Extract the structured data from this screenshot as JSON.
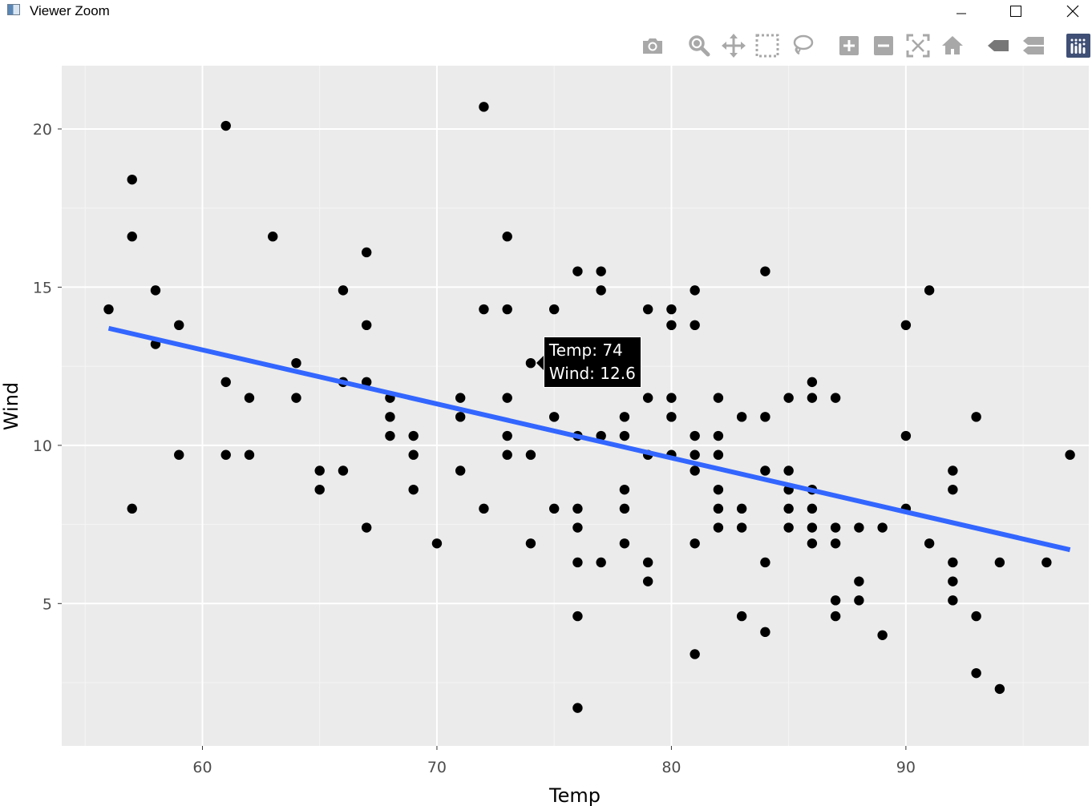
{
  "window": {
    "title": "Viewer Zoom",
    "controls": [
      "minimize",
      "maximize",
      "close"
    ]
  },
  "modebar": {
    "buttons": [
      {
        "name": "camera-icon"
      },
      {
        "name": "zoom-icon"
      },
      {
        "name": "pan-icon"
      },
      {
        "name": "box-select-icon"
      },
      {
        "name": "lasso-select-icon"
      },
      {
        "name": "zoom-in-icon"
      },
      {
        "name": "zoom-out-icon"
      },
      {
        "name": "autoscale-icon"
      },
      {
        "name": "reset-axes-icon"
      },
      {
        "name": "hover-closest-icon"
      },
      {
        "name": "hover-compare-icon"
      },
      {
        "name": "plotly-logo-icon"
      }
    ]
  },
  "tooltip": {
    "line1": "Temp: 74",
    "line2": "Wind: 12.6",
    "x": 74,
    "y": 12.6
  },
  "chart_data": {
    "type": "scatter",
    "xlabel": "Temp",
    "ylabel": "Wind",
    "xlim": [
      54,
      97.8
    ],
    "ylim": [
      0.5,
      22
    ],
    "xticks": [
      60,
      70,
      80,
      90
    ],
    "yticks": [
      5,
      10,
      15,
      20
    ],
    "grid": true,
    "background": "#ebebeb",
    "point_color": "#000000",
    "line_color": "#3366ff",
    "trend_line": {
      "x": [
        56,
        97
      ],
      "y": [
        13.7,
        6.7
      ]
    },
    "points": [
      [
        56,
        14.3
      ],
      [
        57,
        18.4
      ],
      [
        57,
        16.6
      ],
      [
        57,
        8.0
      ],
      [
        58,
        14.9
      ],
      [
        58,
        13.2
      ],
      [
        59,
        13.8
      ],
      [
        59,
        9.7
      ],
      [
        61,
        20.1
      ],
      [
        61,
        12.0
      ],
      [
        61,
        9.7
      ],
      [
        62,
        11.5
      ],
      [
        62,
        9.7
      ],
      [
        63,
        16.6
      ],
      [
        64,
        12.6
      ],
      [
        64,
        11.5
      ],
      [
        65,
        9.2
      ],
      [
        65,
        8.6
      ],
      [
        66,
        14.9
      ],
      [
        66,
        12.0
      ],
      [
        66,
        9.2
      ],
      [
        67,
        16.1
      ],
      [
        67,
        13.8
      ],
      [
        67,
        12.0
      ],
      [
        67,
        7.4
      ],
      [
        68,
        11.5
      ],
      [
        68,
        10.9
      ],
      [
        68,
        10.3
      ],
      [
        69,
        10.3
      ],
      [
        69,
        9.7
      ],
      [
        69,
        8.6
      ],
      [
        70,
        6.9
      ],
      [
        71,
        11.5
      ],
      [
        71,
        10.9
      ],
      [
        71,
        9.2
      ],
      [
        72,
        20.7
      ],
      [
        72,
        14.3
      ],
      [
        72,
        8.0
      ],
      [
        73,
        16.6
      ],
      [
        73,
        14.3
      ],
      [
        73,
        11.5
      ],
      [
        73,
        10.3
      ],
      [
        73,
        9.7
      ],
      [
        74,
        12.6
      ],
      [
        74,
        9.7
      ],
      [
        74,
        6.9
      ],
      [
        75,
        14.3
      ],
      [
        75,
        10.9
      ],
      [
        75,
        8.0
      ],
      [
        76,
        15.5
      ],
      [
        76,
        10.3
      ],
      [
        76,
        8.0
      ],
      [
        76,
        7.4
      ],
      [
        76,
        6.3
      ],
      [
        76,
        4.6
      ],
      [
        76,
        1.7
      ],
      [
        77,
        15.5
      ],
      [
        77,
        14.9
      ],
      [
        77,
        10.3
      ],
      [
        77,
        6.3
      ],
      [
        78,
        10.9
      ],
      [
        78,
        10.3
      ],
      [
        78,
        8.6
      ],
      [
        78,
        8.0
      ],
      [
        78,
        6.9
      ],
      [
        79,
        14.3
      ],
      [
        79,
        11.5
      ],
      [
        79,
        9.7
      ],
      [
        79,
        6.3
      ],
      [
        79,
        5.7
      ],
      [
        80,
        14.3
      ],
      [
        80,
        13.8
      ],
      [
        80,
        11.5
      ],
      [
        80,
        10.9
      ],
      [
        80,
        9.7
      ],
      [
        81,
        14.9
      ],
      [
        81,
        13.8
      ],
      [
        81,
        10.3
      ],
      [
        81,
        9.7
      ],
      [
        81,
        9.2
      ],
      [
        81,
        6.9
      ],
      [
        81,
        3.4
      ],
      [
        82,
        11.5
      ],
      [
        82,
        10.3
      ],
      [
        82,
        9.7
      ],
      [
        82,
        8.6
      ],
      [
        82,
        8.0
      ],
      [
        82,
        7.4
      ],
      [
        83,
        10.9
      ],
      [
        83,
        8.0
      ],
      [
        83,
        7.4
      ],
      [
        83,
        4.6
      ],
      [
        84,
        15.5
      ],
      [
        84,
        10.9
      ],
      [
        84,
        9.2
      ],
      [
        84,
        6.3
      ],
      [
        84,
        4.1
      ],
      [
        85,
        11.5
      ],
      [
        85,
        9.2
      ],
      [
        85,
        8.6
      ],
      [
        85,
        8.0
      ],
      [
        85,
        7.4
      ],
      [
        86,
        12.0
      ],
      [
        86,
        11.5
      ],
      [
        86,
        8.6
      ],
      [
        86,
        8.0
      ],
      [
        86,
        7.4
      ],
      [
        86,
        6.9
      ],
      [
        87,
        11.5
      ],
      [
        87,
        7.4
      ],
      [
        87,
        6.9
      ],
      [
        87,
        5.1
      ],
      [
        87,
        4.6
      ],
      [
        88,
        7.4
      ],
      [
        88,
        5.7
      ],
      [
        88,
        5.1
      ],
      [
        89,
        7.4
      ],
      [
        89,
        4.0
      ],
      [
        90,
        13.8
      ],
      [
        90,
        10.3
      ],
      [
        90,
        8.0
      ],
      [
        91,
        14.9
      ],
      [
        91,
        6.9
      ],
      [
        92,
        9.2
      ],
      [
        92,
        8.6
      ],
      [
        92,
        6.3
      ],
      [
        92,
        5.7
      ],
      [
        92,
        5.1
      ],
      [
        93,
        10.9
      ],
      [
        93,
        4.6
      ],
      [
        93,
        2.8
      ],
      [
        94,
        6.3
      ],
      [
        94,
        2.3
      ],
      [
        96,
        6.3
      ],
      [
        97,
        9.7
      ]
    ]
  }
}
